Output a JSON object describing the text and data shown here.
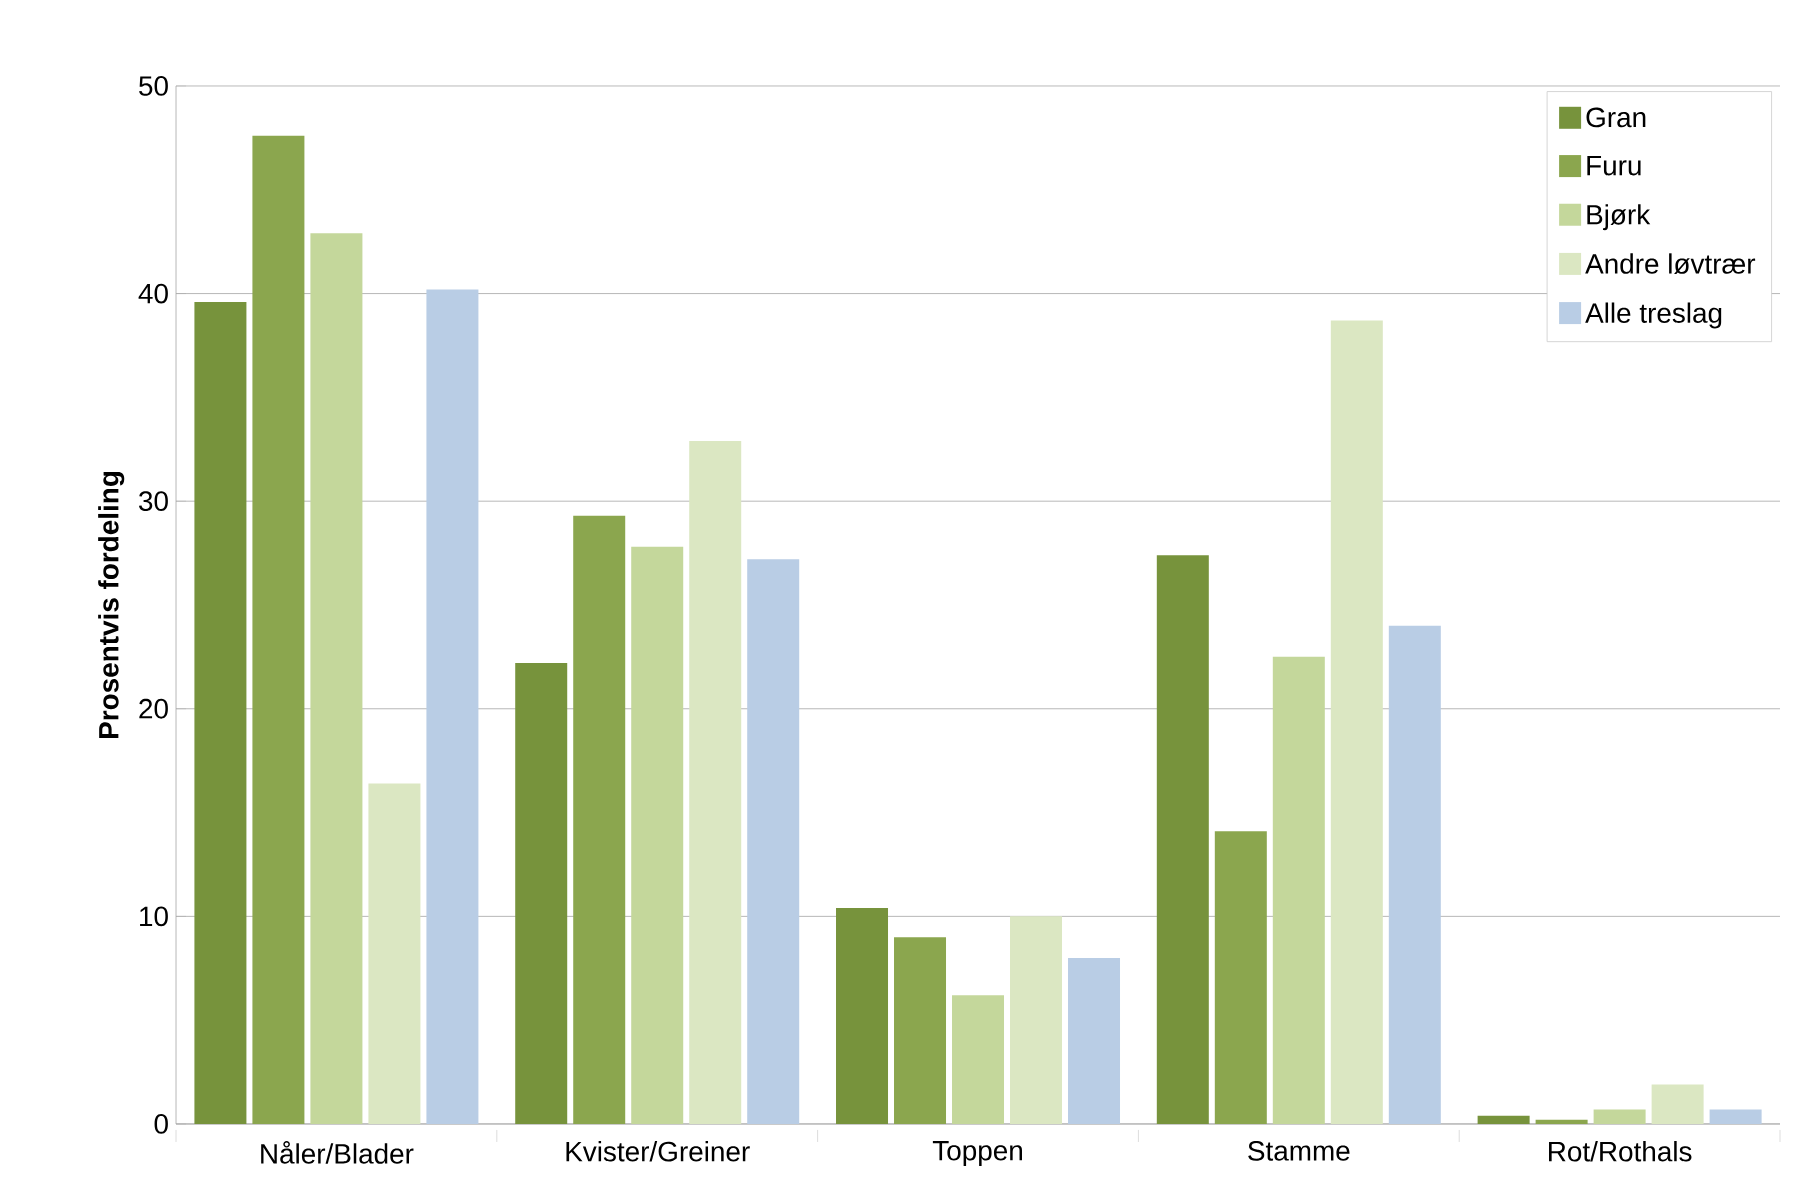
{
  "chart_data": {
    "type": "bar",
    "ylabel": "Prosentvis  fordeling",
    "categories": [
      "Nåler/Blader",
      "Kvister/Greiner",
      "Toppen",
      "Stamme",
      "Rot/Rothals"
    ],
    "series": [
      {
        "name": "Gran",
        "color": "#77933c",
        "values": [
          39.6,
          22.2,
          10.4,
          27.4,
          0.4
        ]
      },
      {
        "name": "Furu",
        "color": "#8ba64e",
        "values": [
          47.6,
          29.3,
          9.0,
          14.1,
          0.2
        ]
      },
      {
        "name": "Bjørk",
        "color": "#c4d79b",
        "values": [
          42.9,
          27.8,
          6.2,
          22.5,
          0.7
        ]
      },
      {
        "name": "Andre løvtrær",
        "color": "#dbe7c2",
        "values": [
          16.4,
          32.9,
          10.0,
          38.7,
          1.9
        ]
      },
      {
        "name": "Alle treslag",
        "color": "#b9cde5",
        "values": [
          40.2,
          27.2,
          8.0,
          24.0,
          0.7
        ]
      }
    ],
    "ylim": [
      0,
      50
    ],
    "yticks": [
      0,
      10,
      20,
      30,
      40,
      50
    ],
    "grid": "y",
    "legend": "top right"
  }
}
